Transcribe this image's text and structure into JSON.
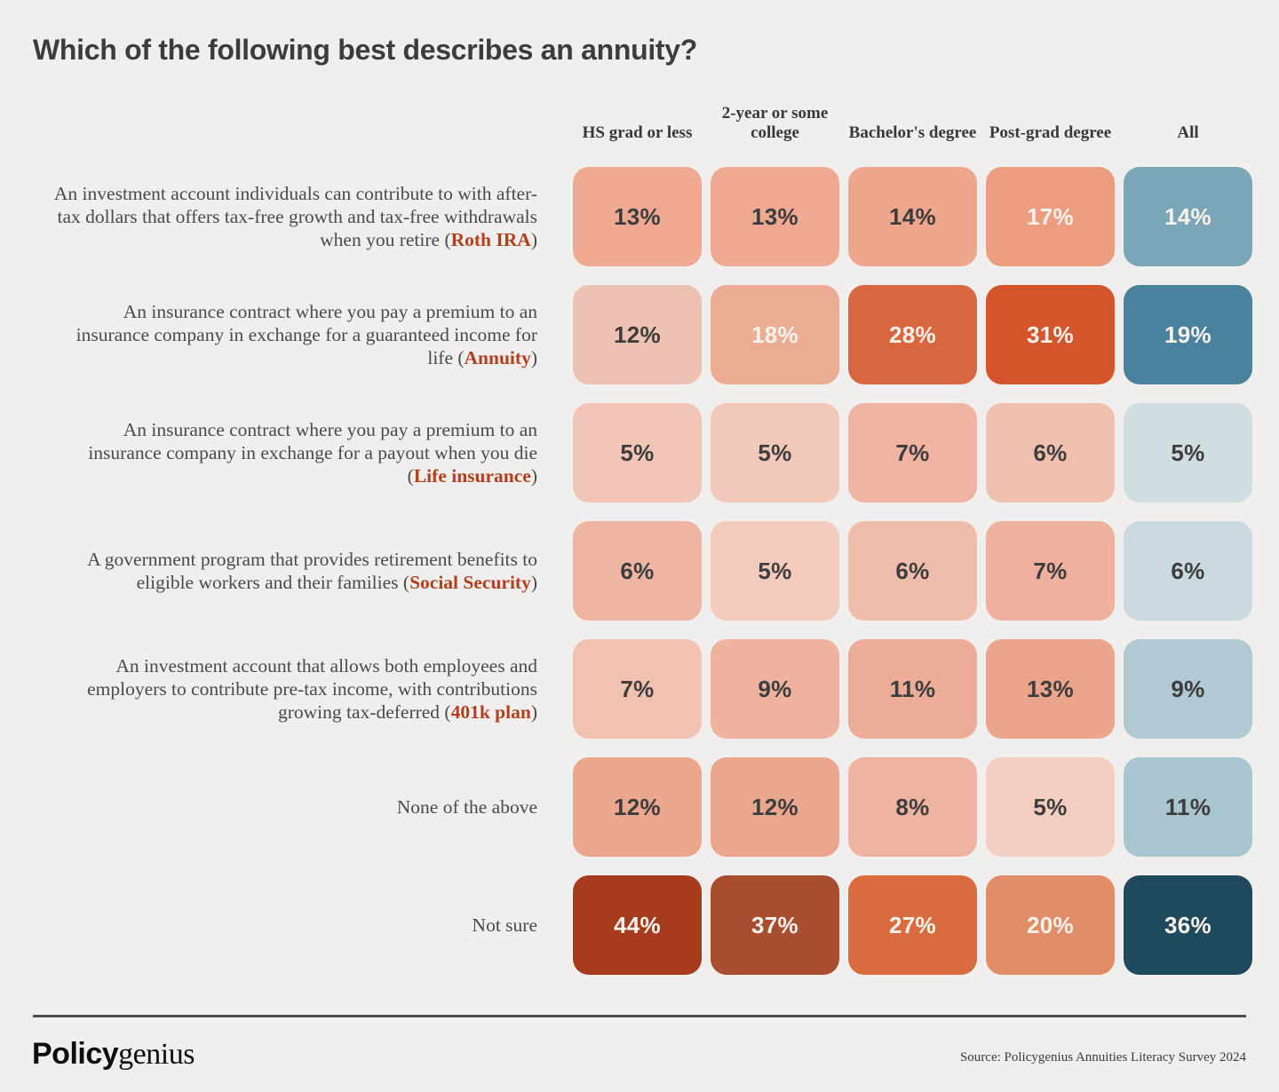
{
  "title": "Which of the following best describes an annuity?",
  "columns": [
    {
      "label": "HS grad or less"
    },
    {
      "label": "2-year or some college"
    },
    {
      "label": "Bachelor's degree"
    },
    {
      "label": "Post-grad degree"
    },
    {
      "label": "All"
    }
  ],
  "rows": [
    {
      "label_prefix": "An investment account individuals can contribute to with after-tax dollars that offers tax-free growth and tax-free withdrawals when you retire (",
      "label_keyword": "Roth IRA",
      "label_suffix": ")",
      "cells": [
        {
          "v": "13%",
          "bg": "#efa992",
          "fg": "#3e3d3d"
        },
        {
          "v": "13%",
          "bg": "#efa992",
          "fg": "#3e3d3d"
        },
        {
          "v": "14%",
          "bg": "#eea68d",
          "fg": "#3e3d3d"
        },
        {
          "v": "17%",
          "bg": "#ec9d80",
          "fg": "#f8f2ec"
        },
        {
          "v": "14%",
          "bg": "#7ba6b7",
          "fg": "#f8f2ec"
        }
      ]
    },
    {
      "label_prefix": "An insurance contract where you pay a premium to an insurance company in exchange for a guaranteed income for life (",
      "label_keyword": "Annuity",
      "label_suffix": ")",
      "cells": [
        {
          "v": "12%",
          "bg": "#eec2b3",
          "fg": "#3e3d3d"
        },
        {
          "v": "18%",
          "bg": "#ecab93",
          "fg": "#f8f2ec"
        },
        {
          "v": "28%",
          "bg": "#d8673f",
          "fg": "#f8f2ec"
        },
        {
          "v": "31%",
          "bg": "#d4552b",
          "fg": "#f8f2ec"
        },
        {
          "v": "19%",
          "bg": "#4a819c",
          "fg": "#f8f2ec"
        }
      ]
    },
    {
      "label_prefix": "An insurance contract where you pay a premium to an insurance company in exchange for a payout when you die (",
      "label_keyword": "Life insurance",
      "label_suffix": ")",
      "cells": [
        {
          "v": "5%",
          "bg": "#f2c6b7",
          "fg": "#3e3d3d"
        },
        {
          "v": "5%",
          "bg": "#f2c8b9",
          "fg": "#3e3d3d"
        },
        {
          "v": "7%",
          "bg": "#efb4a2",
          "fg": "#3e3d3d"
        },
        {
          "v": "6%",
          "bg": "#f0c0b0",
          "fg": "#3e3d3d"
        },
        {
          "v": "5%",
          "bg": "#d0dde1",
          "fg": "#3e3d3d"
        }
      ]
    },
    {
      "label_prefix": "A government program that provides retirement benefits to eligible workers and their families (",
      "label_keyword": "Social Security",
      "label_suffix": ")",
      "cells": [
        {
          "v": "6%",
          "bg": "#efb5a3",
          "fg": "#3e3d3d"
        },
        {
          "v": "5%",
          "bg": "#f3cbbd",
          "fg": "#3e3d3d"
        },
        {
          "v": "6%",
          "bg": "#f0bdac",
          "fg": "#3e3d3d"
        },
        {
          "v": "7%",
          "bg": "#eeb19e",
          "fg": "#3e3d3d"
        },
        {
          "v": "6%",
          "bg": "#cbdae0",
          "fg": "#3e3d3d"
        }
      ]
    },
    {
      "label_prefix": "An investment account that allows both employees and employers to contribute pre-tax income, with contributions growing tax-deferred (",
      "label_keyword": "401k plan",
      "label_suffix": ")",
      "cells": [
        {
          "v": "7%",
          "bg": "#f1c2b2",
          "fg": "#3e3d3d"
        },
        {
          "v": "9%",
          "bg": "#eeb29e",
          "fg": "#3e3d3d"
        },
        {
          "v": "11%",
          "bg": "#edac97",
          "fg": "#3e3d3d"
        },
        {
          "v": "13%",
          "bg": "#eba58c",
          "fg": "#3e3d3d"
        },
        {
          "v": "9%",
          "bg": "#b0c9d3",
          "fg": "#3e3d3d"
        }
      ]
    },
    {
      "label_prefix": "None of the above",
      "label_keyword": "",
      "label_suffix": "",
      "cells": [
        {
          "v": "12%",
          "bg": "#eba78e",
          "fg": "#3e3d3d"
        },
        {
          "v": "12%",
          "bg": "#eba78e",
          "fg": "#3e3d3d"
        },
        {
          "v": "8%",
          "bg": "#eeb4a1",
          "fg": "#3e3d3d"
        },
        {
          "v": "5%",
          "bg": "#f3cdc0",
          "fg": "#3e3d3d"
        },
        {
          "v": "11%",
          "bg": "#a9c6d0",
          "fg": "#3e3d3d"
        }
      ]
    },
    {
      "label_prefix": "Not sure",
      "label_keyword": "",
      "label_suffix": "",
      "cells": [
        {
          "v": "44%",
          "bg": "#a53a1d",
          "fg": "#f8f2ec"
        },
        {
          "v": "37%",
          "bg": "#a84d30",
          "fg": "#f8f2ec"
        },
        {
          "v": "27%",
          "bg": "#d96b3e",
          "fg": "#f8f2ec"
        },
        {
          "v": "20%",
          "bg": "#e18e68",
          "fg": "#f8f2ec"
        },
        {
          "v": "36%",
          "bg": "#1f4a5d",
          "fg": "#f8f2ec"
        }
      ]
    }
  ],
  "footer": {
    "logo_bold": "Policy",
    "logo_serif": "genius",
    "source": "Source: Policygenius Annuities Literacy Survey 2024"
  },
  "chart_data": {
    "type": "heatmap",
    "title": "Which of the following best describes an annuity?",
    "columns": [
      "HS grad or less",
      "2-year or some college",
      "Bachelor's degree",
      "Post-grad degree",
      "All"
    ],
    "rows": [
      "An investment account individuals can contribute to with after-tax dollars that offers tax-free growth and tax-free withdrawals when you retire (Roth IRA)",
      "An insurance contract where you pay a premium to an insurance company in exchange for a guaranteed income for life (Annuity)",
      "An insurance contract where you pay a premium to an insurance company in exchange for a payout when you die (Life insurance)",
      "A government program that provides retirement benefits to eligible workers and their families (Social Security)",
      "An investment account that allows both employees and employers to contribute pre-tax income, with contributions growing tax-deferred (401k plan)",
      "None of the above",
      "Not sure"
    ],
    "row_keywords": [
      "Roth IRA",
      "Annuity",
      "Life insurance",
      "Social Security",
      "401k plan",
      null,
      null
    ],
    "values_percent": [
      [
        13,
        13,
        14,
        17,
        14
      ],
      [
        12,
        18,
        28,
        31,
        19
      ],
      [
        5,
        5,
        7,
        6,
        5
      ],
      [
        6,
        5,
        6,
        7,
        6
      ],
      [
        7,
        9,
        11,
        13,
        9
      ],
      [
        12,
        12,
        8,
        5,
        11
      ],
      [
        44,
        37,
        27,
        20,
        36
      ]
    ],
    "color_scales": {
      "education_columns": {
        "low": "#f3cdc0",
        "high": "#a53a1d"
      },
      "all_column": {
        "low": "#d0dde1",
        "high": "#1f4a5d"
      }
    },
    "accent_keyword_color": "#b23f1d",
    "background_color": "#f0efee",
    "legend": "none",
    "source": "Source: Policygenius Annuities Literacy Survey 2024"
  }
}
